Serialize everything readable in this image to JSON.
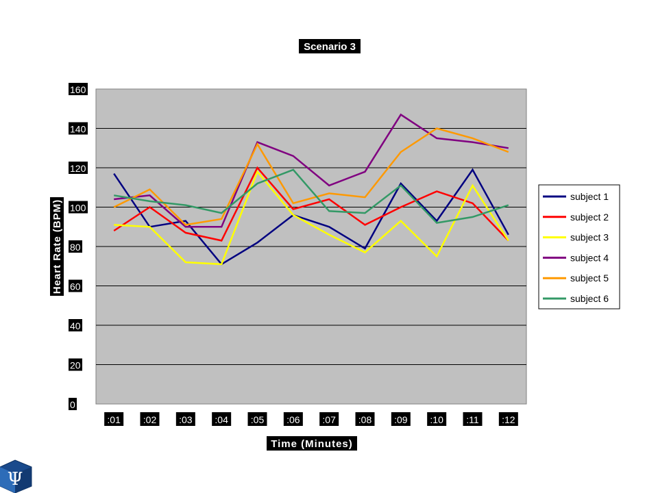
{
  "chart_data": {
    "type": "line",
    "title": "Scenario 3",
    "xlabel": "Time (Minutes)",
    "ylabel": "Heart Rate (BPM)",
    "categories": [
      ":01",
      ":02",
      ":03",
      ":04",
      ":05",
      ":06",
      ":07",
      ":08",
      ":09",
      ":10",
      ":11",
      ":12"
    ],
    "ylim": [
      0,
      160
    ],
    "yticks": [
      "0",
      "20",
      "40",
      "60",
      "80",
      "100",
      "120",
      "140",
      "160"
    ],
    "grid": true,
    "plot_background": "#c0c0c0",
    "legend_position": "right",
    "series": [
      {
        "name": "subject 1",
        "color": "#000080",
        "values": [
          117,
          90,
          93,
          71,
          82,
          96,
          90,
          79,
          112,
          93,
          119,
          86
        ]
      },
      {
        "name": "subject 2",
        "color": "#ff0000",
        "values": [
          88,
          100,
          87,
          83,
          120,
          99,
          104,
          91,
          100,
          108,
          102,
          83
        ]
      },
      {
        "name": "subject 3",
        "color": "#ffff00",
        "values": [
          91,
          90,
          72,
          71,
          118,
          96,
          86,
          77,
          93,
          75,
          111,
          83
        ]
      },
      {
        "name": "subject 4",
        "color": "#800080",
        "values": [
          104,
          106,
          90,
          90,
          133,
          126,
          111,
          118,
          147,
          135,
          133,
          130
        ]
      },
      {
        "name": "subject 5",
        "color": "#ff9900",
        "values": [
          100,
          109,
          91,
          94,
          132,
          102,
          107,
          105,
          128,
          140,
          135,
          128
        ]
      },
      {
        "name": "subject 6",
        "color": "#339966",
        "values": [
          106,
          103,
          101,
          97,
          112,
          119,
          98,
          97,
          111,
          92,
          95,
          101
        ]
      }
    ]
  },
  "logo": {
    "icon": "psi-cube-logo-icon"
  }
}
